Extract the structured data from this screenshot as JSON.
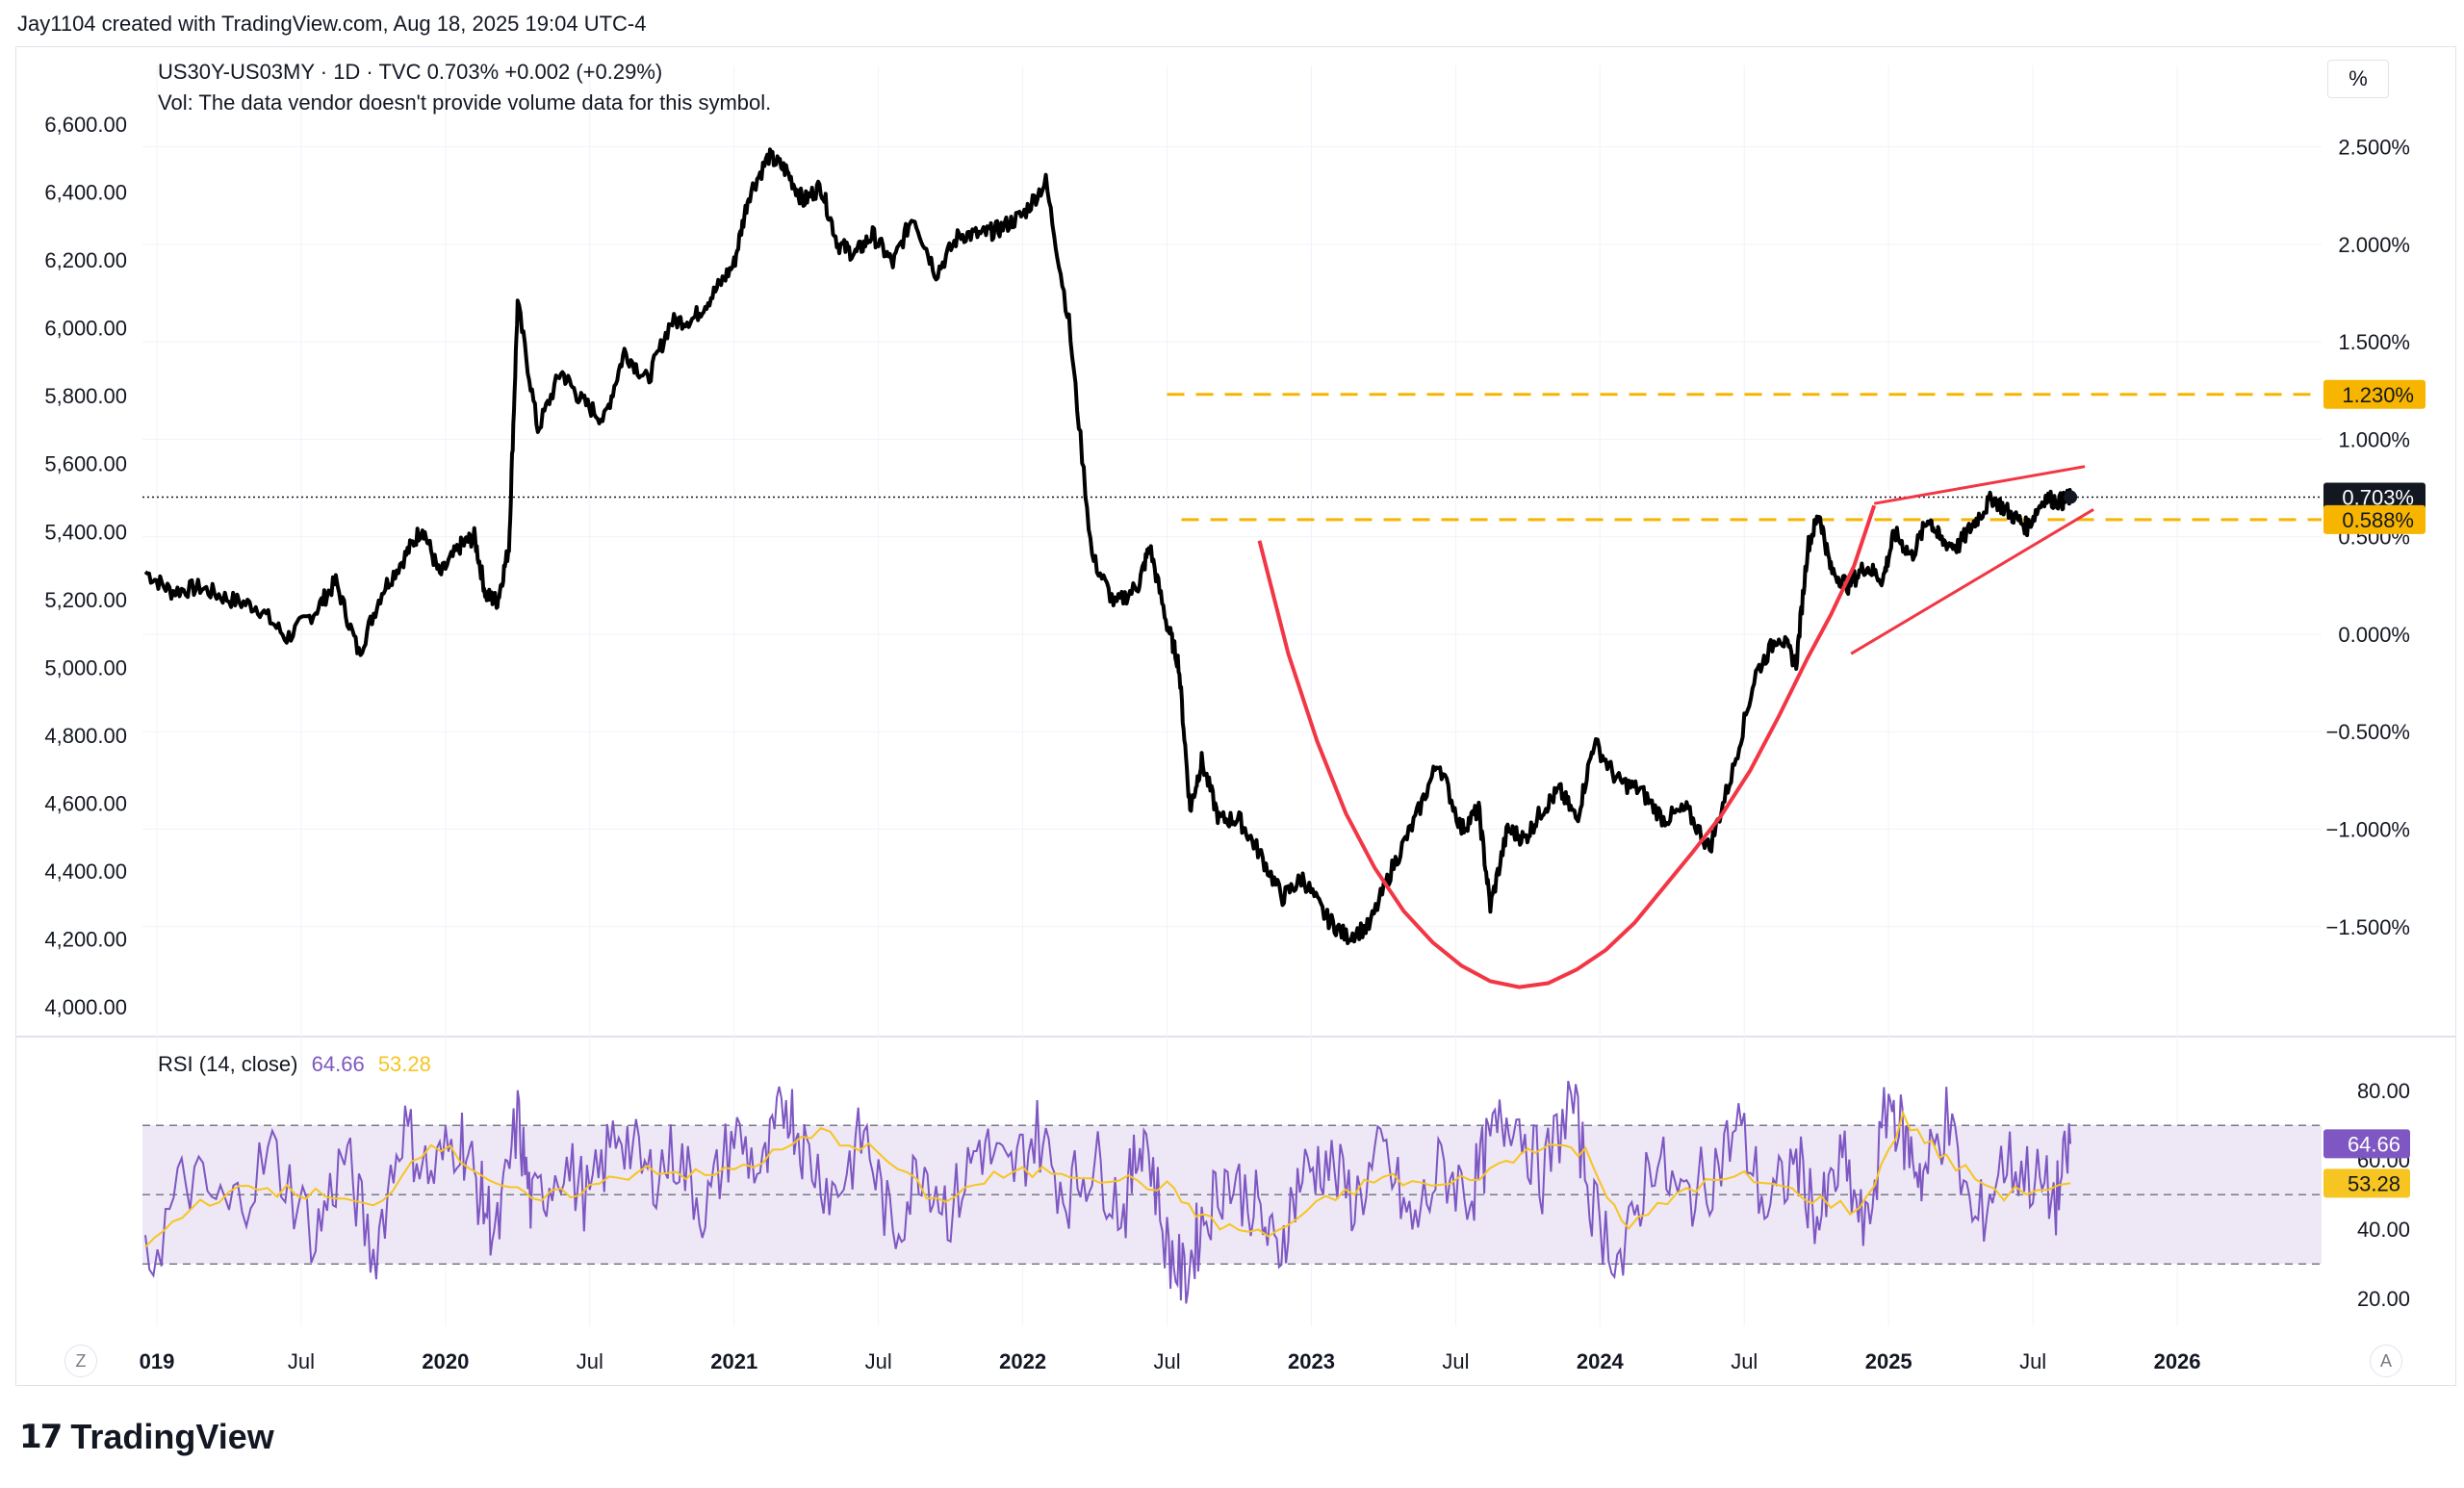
{
  "header": {
    "attribution": "Jay1104 created with TradingView.com, Aug 18, 2025 19:04 UTC-4"
  },
  "legend": {
    "line1": "US30Y-US03MY · 1D · TVC  0.703%  +0.002 (+0.29%)",
    "line2": "Vol: The data vendor doesn't provide volume data for this symbol."
  },
  "scale_button": "%",
  "corner_left": "Z",
  "corner_right": "A",
  "rsi_legend": {
    "label": "RSI (14, close)",
    "rsi_value": "64.66",
    "ma_value": "53.28"
  },
  "brand": {
    "logo": "17",
    "name": "TradingView"
  },
  "colors": {
    "price": "#000000",
    "pattern": "#f23645",
    "level": "#f7b500",
    "rsi": "#7e57c2",
    "rsi_ma": "#f7c521",
    "rsi_band": "#ede7f6"
  },
  "chart_data": [
    {
      "type": "line",
      "title": "US30Y-US03MY · 1D · TVC",
      "left_axis": {
        "ticks": [
          "6,600.00",
          "6,400.00",
          "6,200.00",
          "6,000.00",
          "5,800.00",
          "5,600.00",
          "5,400.00",
          "5,200.00",
          "5,000.00",
          "4,800.00",
          "4,600.00",
          "4,400.00",
          "4,200.00",
          "4,000.00"
        ],
        "ylim": [
          3960,
          6660
        ]
      },
      "right_axis": {
        "ticks": [
          "2.500%",
          "2.000%",
          "1.500%",
          "1.000%",
          "0.500%",
          "0.000%",
          "−0.500%",
          "−1.000%",
          "−1.500%"
        ],
        "ylim": [
          -1.98,
          2.72
        ]
      },
      "x_ticks": [
        "019",
        "Jul",
        "2020",
        "Jul",
        "2021",
        "Jul",
        "2022",
        "Jul",
        "2023",
        "Jul",
        "2024",
        "Jul",
        "2025",
        "Jul",
        "2026"
      ],
      "x_tick_bold": [
        true,
        false,
        true,
        false,
        true,
        false,
        true,
        false,
        true,
        false,
        true,
        false,
        true,
        false,
        true
      ],
      "xlim": [
        2018.95,
        2026.5
      ],
      "series": [
        {
          "name": "US30Y-US03MY",
          "unit": "%",
          "x": [
            2018.96,
            2019.05,
            2019.15,
            2019.25,
            2019.35,
            2019.45,
            2019.55,
            2019.62,
            2019.7,
            2019.78,
            2019.86,
            2019.92,
            2019.98,
            2020.05,
            2020.1,
            2020.14,
            2020.18,
            2020.22,
            2020.25,
            2020.32,
            2020.4,
            2020.47,
            2020.55,
            2020.62,
            2020.7,
            2020.78,
            2020.86,
            2020.93,
            2021.0,
            2021.05,
            2021.12,
            2021.18,
            2021.24,
            2021.3,
            2021.36,
            2021.42,
            2021.48,
            2021.55,
            2021.62,
            2021.7,
            2021.78,
            2021.86,
            2021.92,
            2022.0,
            2022.08,
            2022.16,
            2022.24,
            2022.32,
            2022.4,
            2022.44,
            2022.5,
            2022.54,
            2022.58,
            2022.62,
            2022.68,
            2022.75,
            2022.82,
            2022.9,
            2022.97,
            2023.05,
            2023.12,
            2023.2,
            2023.28,
            2023.36,
            2023.44,
            2023.52,
            2023.58,
            2023.62,
            2023.68,
            2023.74,
            2023.8,
            2023.86,
            2023.92,
            2023.98,
            2024.06,
            2024.14,
            2024.22,
            2024.3,
            2024.38,
            2024.46,
            2024.54,
            2024.62,
            2024.68,
            2024.72,
            2024.76,
            2024.8,
            2024.86,
            2024.92,
            2024.98,
            2025.02,
            2025.08,
            2025.14,
            2025.18,
            2025.24,
            2025.3,
            2025.36,
            2025.42,
            2025.48,
            2025.54,
            2025.6,
            2025.63
          ],
          "y": [
            0.32,
            0.22,
            0.24,
            0.18,
            0.14,
            -0.02,
            0.12,
            0.27,
            -0.1,
            0.22,
            0.4,
            0.55,
            0.3,
            0.45,
            0.5,
            0.2,
            0.17,
            0.45,
            1.7,
            1.05,
            1.35,
            1.2,
            1.1,
            1.45,
            1.3,
            1.6,
            1.62,
            1.75,
            1.9,
            2.25,
            2.45,
            2.38,
            2.22,
            2.3,
            2.0,
            1.95,
            2.05,
            1.9,
            2.15,
            1.85,
            2.05,
            2.05,
            2.08,
            2.15,
            2.32,
            1.6,
            0.4,
            0.15,
            0.25,
            0.45,
            0.05,
            -0.15,
            -0.9,
            -0.65,
            -0.95,
            -0.95,
            -1.12,
            -1.35,
            -1.25,
            -1.45,
            -1.55,
            -1.5,
            -1.2,
            -0.95,
            -0.65,
            -1.0,
            -0.9,
            -1.4,
            -1.0,
            -1.05,
            -0.9,
            -0.8,
            -0.95,
            -0.55,
            -0.75,
            -0.8,
            -0.95,
            -0.9,
            -1.1,
            -0.7,
            -0.2,
            0.0,
            -0.15,
            0.45,
            0.62,
            0.33,
            0.25,
            0.35,
            0.28,
            0.52,
            0.4,
            0.6,
            0.48,
            0.45,
            0.58,
            0.7,
            0.62,
            0.55,
            0.7,
            0.68,
            0.703
          ]
        }
      ],
      "pattern": {
        "cup": {
          "x": [
            2022.82,
            2022.92,
            2023.02,
            2023.12,
            2023.22,
            2023.32,
            2023.42,
            2023.52,
            2023.62,
            2023.72,
            2023.82,
            2023.92,
            2024.02,
            2024.12,
            2024.22,
            2024.32,
            2024.42,
            2024.52,
            2024.62,
            2024.72,
            2024.8,
            2024.88,
            2024.95
          ],
          "y": [
            0.48,
            -0.1,
            -0.55,
            -0.92,
            -1.2,
            -1.42,
            -1.58,
            -1.7,
            -1.78,
            -1.81,
            -1.79,
            -1.72,
            -1.62,
            -1.48,
            -1.3,
            -1.12,
            -0.93,
            -0.7,
            -0.42,
            -0.12,
            0.1,
            0.35,
            0.66
          ]
        },
        "wedge_upper": {
          "x": [
            2024.95,
            2025.68
          ],
          "y": [
            0.67,
            0.86
          ]
        },
        "wedge_lower": {
          "x": [
            2024.87,
            2025.71
          ],
          "y": [
            -0.1,
            0.64
          ]
        }
      },
      "levels": [
        {
          "value": 1.23,
          "label": "1.230%",
          "x_start": 2022.5
        },
        {
          "value": 0.588,
          "label": "0.588%",
          "x_start": 2022.55
        }
      ],
      "last_value": {
        "value": 0.703,
        "label": "0.703%"
      }
    },
    {
      "type": "line",
      "title": "RSI (14, close)",
      "axis": {
        "ticks": [
          "80.00",
          "60.00",
          "40.00",
          "20.00"
        ],
        "ylim": [
          12,
          87
        ]
      },
      "bands": {
        "upper": 70,
        "middle": 50,
        "lower": 30
      },
      "series": [
        {
          "name": "RSI",
          "x": [
            2018.96,
            2019.1,
            2019.25,
            2019.4,
            2019.55,
            2019.65,
            2019.75,
            2019.85,
            2019.95,
            2020.05,
            2020.12,
            2020.18,
            2020.25,
            2020.3,
            2020.4,
            2020.5,
            2020.6,
            2020.7,
            2020.8,
            2020.9,
            2021.0,
            2021.1,
            2021.18,
            2021.25,
            2021.35,
            2021.45,
            2021.55,
            2021.65,
            2021.75,
            2021.85,
            2021.95,
            2022.05,
            2022.15,
            2022.25,
            2022.35,
            2022.42,
            2022.5,
            2022.56,
            2022.62,
            2022.7,
            2022.8,
            2022.88,
            2022.96,
            2023.05,
            2023.15,
            2023.25,
            2023.35,
            2023.45,
            2023.55,
            2023.62,
            2023.7,
            2023.8,
            2023.9,
            2023.98,
            2024.08,
            2024.18,
            2024.28,
            2024.38,
            2024.48,
            2024.58,
            2024.68,
            2024.76,
            2024.84,
            2024.92,
            2025.0,
            2025.06,
            2025.12,
            2025.2,
            2025.3,
            2025.4,
            2025.5,
            2025.58,
            2025.63
          ],
          "y": [
            28,
            55,
            45,
            62,
            38,
            62,
            32,
            70,
            55,
            68,
            50,
            38,
            72,
            45,
            60,
            48,
            70,
            55,
            62,
            45,
            68,
            55,
            78,
            62,
            50,
            68,
            38,
            60,
            45,
            65,
            55,
            68,
            50,
            60,
            45,
            70,
            35,
            25,
            42,
            55,
            48,
            32,
            55,
            60,
            48,
            62,
            40,
            58,
            50,
            65,
            75,
            55,
            78,
            45,
            30,
            62,
            48,
            55,
            70,
            45,
            60,
            42,
            60,
            38,
            78,
            65,
            55,
            72,
            40,
            60,
            55,
            48,
            64.66
          ]
        },
        {
          "name": "RSI-based MA",
          "x": [
            2018.96,
            2019.15,
            2019.35,
            2019.55,
            2019.75,
            2019.95,
            2020.15,
            2020.3,
            2020.5,
            2020.7,
            2020.9,
            2021.1,
            2021.3,
            2021.5,
            2021.7,
            2021.9,
            2022.1,
            2022.3,
            2022.5,
            2022.65,
            2022.85,
            2023.05,
            2023.25,
            2023.45,
            2023.65,
            2023.8,
            2023.95,
            2024.1,
            2024.3,
            2024.5,
            2024.7,
            2024.9,
            2025.05,
            2025.2,
            2025.4,
            2025.63
          ],
          "y": [
            35,
            48,
            52,
            50,
            46,
            66,
            55,
            48,
            52,
            58,
            55,
            60,
            68,
            62,
            48,
            55,
            57,
            55,
            52,
            42,
            38,
            48,
            55,
            52,
            58,
            65,
            62,
            40,
            52,
            55,
            50,
            45,
            72,
            60,
            50,
            53.28
          ]
        }
      ],
      "last_values": {
        "rsi": "64.66",
        "ma": "53.28"
      }
    }
  ]
}
